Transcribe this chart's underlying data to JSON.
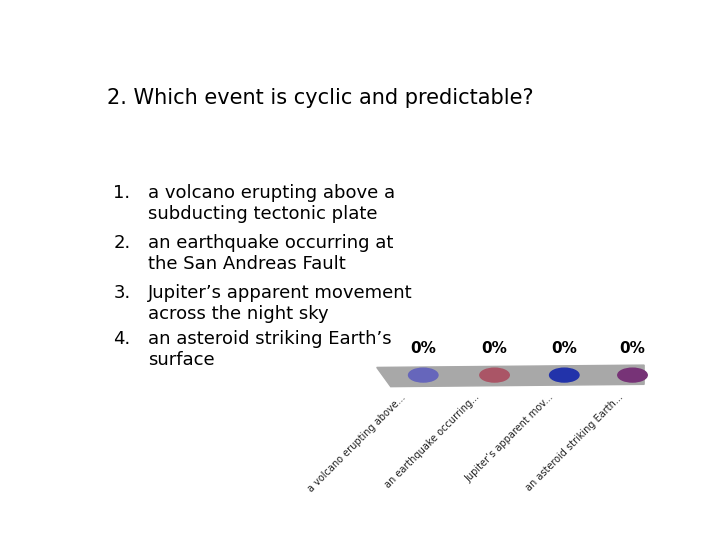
{
  "title": "2. Which event is cyclic and predictable?",
  "items": [
    {
      "number": "1.",
      "text": "a volcano erupting above a\nsubducting tectonic plate"
    },
    {
      "number": "2.",
      "text": "an earthquake occurring at\nthe San Andreas Fault"
    },
    {
      "number": "3.",
      "text": "Jupiter’s apparent movement\nacross the night sky"
    },
    {
      "number": "4.",
      "text": "an asteroid striking Earth’s\nsurface"
    }
  ],
  "dot_colors": [
    "#6666bb",
    "#aa5566",
    "#2233aa",
    "#773377"
  ],
  "percentages": [
    "0%",
    "0%",
    "0%",
    "0%"
  ],
  "tick_labels": [
    "a volcano erupting above...",
    "an earthquake occurring...",
    "Jupiter’s apparent mov...",
    "an asteroid striking Earth..."
  ],
  "background_color": "#ffffff",
  "title_fontsize": 15,
  "item_fontsize": 13,
  "pct_fontsize": 11
}
